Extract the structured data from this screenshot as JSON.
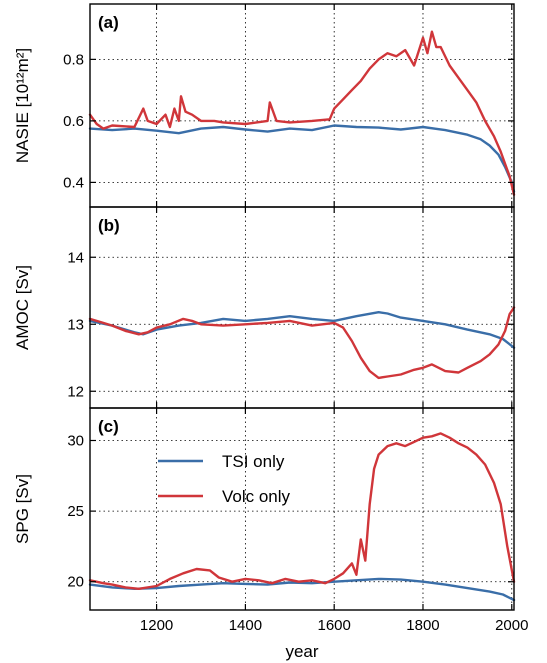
{
  "chart_data": [
    {
      "type": "line",
      "panel_label": "(a)",
      "ylabel": "NASIE [10¹²m²]",
      "xlim": [
        1050,
        2005
      ],
      "ylim": [
        0.32,
        0.98
      ],
      "yticks": [
        0.4,
        0.6,
        0.8
      ],
      "yticklabels": [
        "0.4",
        "0.6",
        "0.8"
      ],
      "grid": true,
      "series": [
        {
          "name": "TSI only",
          "color": "#3a6ea8",
          "x": [
            1050,
            1100,
            1150,
            1200,
            1250,
            1300,
            1350,
            1400,
            1450,
            1500,
            1550,
            1600,
            1650,
            1700,
            1750,
            1800,
            1850,
            1900,
            1930,
            1950,
            1970,
            1985,
            2000,
            2005
          ],
          "y": [
            0.575,
            0.57,
            0.575,
            0.568,
            0.56,
            0.575,
            0.58,
            0.572,
            0.565,
            0.575,
            0.57,
            0.585,
            0.58,
            0.578,
            0.572,
            0.58,
            0.57,
            0.555,
            0.54,
            0.52,
            0.49,
            0.45,
            0.4,
            0.37
          ]
        },
        {
          "name": "Volc only",
          "color": "#d0363a",
          "x": [
            1050,
            1065,
            1080,
            1100,
            1150,
            1170,
            1180,
            1200,
            1220,
            1230,
            1240,
            1250,
            1255,
            1265,
            1280,
            1300,
            1330,
            1350,
            1400,
            1450,
            1455,
            1470,
            1500,
            1550,
            1590,
            1600,
            1620,
            1640,
            1660,
            1680,
            1700,
            1720,
            1740,
            1760,
            1780,
            1800,
            1810,
            1820,
            1830,
            1840,
            1860,
            1880,
            1900,
            1920,
            1940,
            1960,
            1975,
            1985,
            1995,
            2005
          ],
          "y": [
            0.62,
            0.59,
            0.575,
            0.585,
            0.58,
            0.64,
            0.6,
            0.59,
            0.62,
            0.58,
            0.64,
            0.6,
            0.68,
            0.63,
            0.62,
            0.6,
            0.6,
            0.595,
            0.59,
            0.6,
            0.66,
            0.6,
            0.595,
            0.6,
            0.605,
            0.64,
            0.67,
            0.7,
            0.73,
            0.77,
            0.8,
            0.82,
            0.81,
            0.83,
            0.78,
            0.87,
            0.82,
            0.89,
            0.84,
            0.84,
            0.78,
            0.74,
            0.7,
            0.66,
            0.6,
            0.55,
            0.5,
            0.46,
            0.42,
            0.36
          ]
        }
      ]
    },
    {
      "type": "line",
      "panel_label": "(b)",
      "ylabel": "AMOC [Sv]",
      "xlim": [
        1050,
        2005
      ],
      "ylim": [
        11.75,
        14.75
      ],
      "yticks": [
        12,
        13,
        14
      ],
      "yticklabels": [
        "12",
        "13",
        "14"
      ],
      "grid": true,
      "series": [
        {
          "name": "TSI only",
          "color": "#3a6ea8",
          "x": [
            1050,
            1100,
            1150,
            1170,
            1200,
            1250,
            1300,
            1350,
            1400,
            1450,
            1500,
            1550,
            1600,
            1650,
            1700,
            1720,
            1750,
            1800,
            1850,
            1900,
            1950,
            1980,
            2005
          ],
          "y": [
            13.05,
            12.98,
            12.88,
            12.85,
            12.92,
            12.98,
            13.02,
            13.08,
            13.05,
            13.08,
            13.12,
            13.08,
            13.05,
            13.12,
            13.18,
            13.16,
            13.1,
            13.05,
            13.0,
            12.92,
            12.85,
            12.78,
            12.65
          ]
        },
        {
          "name": "Volc only",
          "color": "#d0363a",
          "x": [
            1050,
            1080,
            1100,
            1130,
            1160,
            1180,
            1200,
            1230,
            1260,
            1280,
            1300,
            1350,
            1400,
            1450,
            1500,
            1550,
            1600,
            1620,
            1640,
            1660,
            1680,
            1700,
            1720,
            1750,
            1780,
            1800,
            1820,
            1850,
            1880,
            1900,
            1930,
            1950,
            1970,
            1985,
            1995,
            2005
          ],
          "y": [
            13.08,
            13.02,
            12.98,
            12.9,
            12.85,
            12.88,
            12.95,
            13.0,
            13.08,
            13.05,
            13.0,
            12.98,
            13.0,
            13.02,
            13.05,
            12.98,
            13.02,
            12.95,
            12.75,
            12.5,
            12.3,
            12.2,
            12.22,
            12.25,
            12.32,
            12.35,
            12.4,
            12.3,
            12.28,
            12.35,
            12.45,
            12.55,
            12.7,
            12.9,
            13.15,
            13.25
          ]
        }
      ]
    },
    {
      "type": "line",
      "panel_label": "(c)",
      "ylabel": "SPG [Sv]",
      "xlabel": "year",
      "xlim": [
        1050,
        2005
      ],
      "ylim": [
        18.0,
        32.3
      ],
      "xticks": [
        1200,
        1400,
        1600,
        1800,
        2000
      ],
      "xticklabels": [
        "1200",
        "1400",
        "1600",
        "1800",
        "2000"
      ],
      "yticks": [
        20,
        25,
        30
      ],
      "yticklabels": [
        "20",
        "25",
        "30"
      ],
      "grid": true,
      "legend": {
        "placement": "upper-left",
        "entries": [
          "TSI only",
          "Volc only"
        ]
      },
      "series": [
        {
          "name": "TSI only",
          "color": "#3a6ea8",
          "x": [
            1050,
            1100,
            1150,
            1200,
            1250,
            1300,
            1350,
            1400,
            1450,
            1500,
            1550,
            1600,
            1650,
            1700,
            1750,
            1800,
            1850,
            1900,
            1950,
            1980,
            2005
          ],
          "y": [
            19.8,
            19.6,
            19.5,
            19.55,
            19.7,
            19.8,
            19.9,
            19.85,
            19.8,
            19.95,
            19.9,
            20.0,
            20.1,
            20.2,
            20.15,
            20.0,
            19.8,
            19.55,
            19.3,
            19.1,
            18.7
          ]
        },
        {
          "name": "Volc only",
          "color": "#d0363a",
          "x": [
            1050,
            1080,
            1100,
            1130,
            1160,
            1200,
            1230,
            1260,
            1290,
            1320,
            1340,
            1370,
            1400,
            1430,
            1460,
            1490,
            1520,
            1550,
            1580,
            1600,
            1620,
            1640,
            1650,
            1660,
            1670,
            1680,
            1690,
            1700,
            1720,
            1740,
            1760,
            1780,
            1800,
            1820,
            1840,
            1860,
            1880,
            1900,
            1920,
            1940,
            1960,
            1975,
            1990,
            2005
          ],
          "y": [
            20.1,
            19.9,
            19.8,
            19.6,
            19.5,
            19.7,
            20.2,
            20.6,
            20.9,
            20.8,
            20.3,
            20.0,
            20.2,
            20.1,
            19.9,
            20.2,
            20.0,
            20.1,
            19.9,
            20.2,
            20.6,
            21.3,
            20.5,
            23.0,
            21.5,
            25.5,
            28.0,
            29.0,
            29.6,
            29.8,
            29.6,
            29.9,
            30.2,
            30.3,
            30.5,
            30.2,
            29.8,
            29.5,
            29.0,
            28.3,
            27.0,
            25.5,
            22.5,
            20.0
          ]
        }
      ]
    }
  ]
}
